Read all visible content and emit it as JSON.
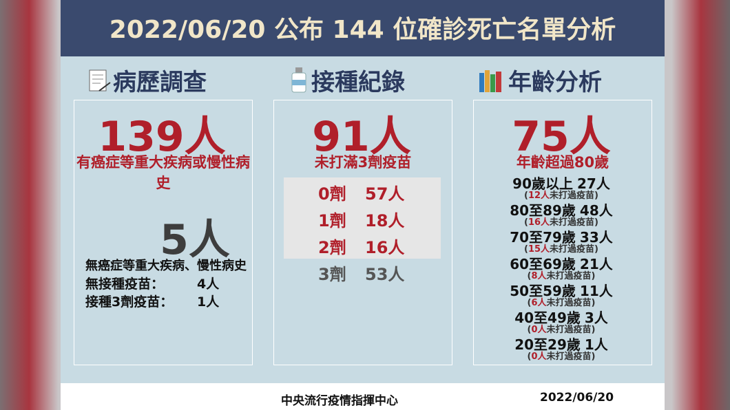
{
  "header": {
    "title": "2022/06/20 公布 144 位確診死亡名單分析"
  },
  "medical": {
    "title": "病歷調查",
    "main": "139人",
    "main_note": "有癌症等重大疾病或慢性病史",
    "second": "5人",
    "second_note": "無癌症等重大疾病、慢性病史",
    "details": [
      {
        "label": "無接種疫苗：",
        "count": "4人"
      },
      {
        "label": "接種3劑疫苗：",
        "count": "1人"
      }
    ]
  },
  "vaccination": {
    "title": "接種紀錄",
    "main": "91人",
    "main_note": "未打滿3劑疫苗",
    "rows": [
      {
        "dose": "0劑",
        "count": "57人"
      },
      {
        "dose": "1劑",
        "count": "18人"
      },
      {
        "dose": "2劑",
        "count": "16人"
      },
      {
        "dose": "3劑",
        "count": "53人"
      }
    ]
  },
  "age": {
    "title": "年齡分析",
    "main": "75人",
    "main_note": "年齡超過80歲",
    "paren_open": "(",
    "note_suffix": "未打過疫苗)",
    "rows": [
      {
        "group": "90歲以上",
        "deaths": "27人",
        "unvaccinated": "12人"
      },
      {
        "group": "80至89歲",
        "deaths": "48人",
        "unvaccinated": "16人"
      },
      {
        "group": "70至79歲",
        "deaths": "33人",
        "unvaccinated": "15人"
      },
      {
        "group": "60至69歲",
        "deaths": "21人",
        "unvaccinated": "8人"
      },
      {
        "group": "50至59歲",
        "deaths": "11人",
        "unvaccinated": "6人"
      },
      {
        "group": "40至49歲",
        "deaths": "3人",
        "unvaccinated": "0人"
      },
      {
        "group": "20至29歲",
        "deaths": "1人",
        "unvaccinated": "0人"
      }
    ]
  },
  "footer": {
    "source": "中央流行疫情指揮中心",
    "date": "2022/06/20"
  }
}
